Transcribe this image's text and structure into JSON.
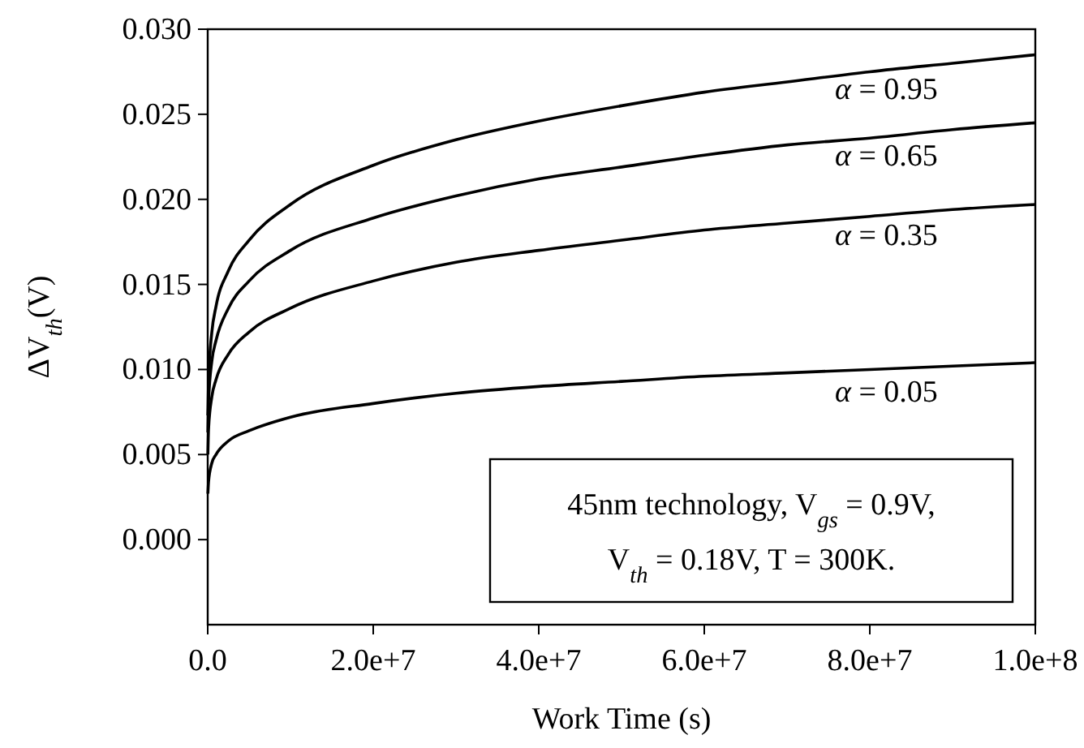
{
  "chart_data": {
    "type": "line",
    "xlabel": "Work Time (s)",
    "ylabel": "ΔV$_{th}$(V)",
    "x": [
      20000,
      100000,
      500000,
      1000000,
      2500000,
      5000000,
      10000000,
      20000000,
      30000000,
      40000000,
      50000000,
      60000000,
      70000000,
      80000000,
      90000000,
      100000000
    ],
    "series": [
      {
        "name": "α = 0.95",
        "color": "#000000",
        "values": [
          0.0073,
          0.0094,
          0.0122,
          0.0137,
          0.0158,
          0.0176,
          0.0197,
          0.022,
          0.0235,
          0.0246,
          0.0255,
          0.0263,
          0.0269,
          0.0275,
          0.028,
          0.0285
        ]
      },
      {
        "name": "α = 0.65",
        "color": "#000000",
        "values": [
          0.0063,
          0.0081,
          0.0105,
          0.0117,
          0.0136,
          0.0152,
          0.017,
          0.0189,
          0.0202,
          0.0212,
          0.0219,
          0.0226,
          0.0232,
          0.0236,
          0.0241,
          0.0245
        ]
      },
      {
        "name": "α = 0.35",
        "color": "#000000",
        "values": [
          0.005,
          0.0065,
          0.0084,
          0.0094,
          0.0109,
          0.0122,
          0.0136,
          0.0152,
          0.0163,
          0.017,
          0.0176,
          0.0182,
          0.0186,
          0.019,
          0.0194,
          0.0197
        ]
      },
      {
        "name": "α = 0.05",
        "color": "#000000",
        "values": [
          0.0027,
          0.0034,
          0.0045,
          0.005,
          0.0058,
          0.0064,
          0.0072,
          0.008,
          0.0086,
          0.009,
          0.0093,
          0.0096,
          0.0098,
          0.01,
          0.0102,
          0.0104
        ]
      }
    ],
    "xlim": [
      0,
      100000000
    ],
    "xticks": [
      {
        "value": 0,
        "label": "0.0"
      },
      {
        "value": 20000000,
        "label": "2.0e+7"
      },
      {
        "value": 40000000,
        "label": "4.0e+7"
      },
      {
        "value": 60000000,
        "label": "6.0e+7"
      },
      {
        "value": 80000000,
        "label": "8.0e+7"
      },
      {
        "value": 100000000,
        "label": "1.0e+8"
      }
    ],
    "ylim": [
      -0.005,
      0.03
    ],
    "yticks": [
      {
        "value": 0,
        "label": "0.000"
      },
      {
        "value": 0.005,
        "label": "0.005"
      },
      {
        "value": 0.01,
        "label": "0.010"
      },
      {
        "value": 0.015,
        "label": "0.015"
      },
      {
        "value": 0.02,
        "label": "0.020"
      },
      {
        "value": 0.025,
        "label": "0.025"
      },
      {
        "value": 0.03,
        "label": "0.030"
      }
    ],
    "annotations": [
      "45nm technology, V$_{gs}$ = 0.9V,",
      "V$_{th}$ = 0.18V, T = 300K."
    ],
    "grid": false,
    "legend": false,
    "marker": "none",
    "line_style": "solid"
  }
}
